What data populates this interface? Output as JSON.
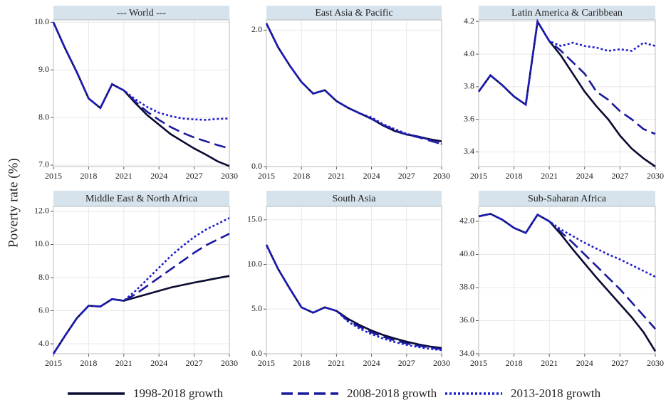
{
  "ylabel": "Poverty rate (%)",
  "chart_data": [
    {
      "type": "line",
      "title": "--- World ---",
      "x": [
        2015,
        2016,
        2017,
        2018,
        2019,
        2020,
        2021,
        2022,
        2023,
        2024,
        2025,
        2026,
        2027,
        2028,
        2029,
        2030
      ],
      "xlim": [
        2015,
        2030
      ],
      "xticks": [
        2015,
        2018,
        2021,
        2024,
        2027,
        2030
      ],
      "ylim": [
        6.97,
        10.05
      ],
      "yticks": [
        {
          "value": 10,
          "label": "10.0"
        },
        {
          "value": 9,
          "label": "9.0"
        },
        {
          "value": 8,
          "label": "8.0"
        },
        {
          "value": 7,
          "label": "7.0"
        }
      ],
      "grid": true,
      "series": [
        {
          "name": "1998-2018 growth",
          "color": "#0b0b33",
          "dash": "solid",
          "values": [
            10.0,
            9.45,
            8.95,
            8.4,
            8.2,
            8.7,
            8.57,
            8.3,
            8.05,
            7.85,
            7.65,
            7.5,
            7.35,
            7.22,
            7.08,
            6.98
          ]
        },
        {
          "name": "2008-2018 growth",
          "color": "#1a1a9c",
          "dash": "dashed",
          "values": [
            10.0,
            9.45,
            8.95,
            8.4,
            8.2,
            8.7,
            8.57,
            8.33,
            8.12,
            7.95,
            7.8,
            7.68,
            7.58,
            7.5,
            7.42,
            7.35
          ]
        },
        {
          "name": "2013-2018 growth",
          "color": "#1f1fcc",
          "dash": "dotted",
          "values": [
            10.0,
            9.45,
            8.95,
            8.4,
            8.2,
            8.7,
            8.57,
            8.38,
            8.22,
            8.1,
            8.03,
            7.98,
            7.96,
            7.95,
            7.97,
            7.98
          ]
        }
      ]
    },
    {
      "type": "line",
      "title": "East Asia & Pacific",
      "x": [
        2015,
        2016,
        2017,
        2018,
        2019,
        2020,
        2021,
        2022,
        2023,
        2024,
        2025,
        2026,
        2027,
        2028,
        2029,
        2030
      ],
      "xlim": [
        2015,
        2030
      ],
      "xticks": [
        2015,
        2018,
        2021,
        2024,
        2027,
        2030
      ],
      "ylim": [
        0,
        2.15
      ],
      "yticks": [
        {
          "value": 2,
          "label": "2.0"
        },
        {
          "value": 0,
          "label": "0.0"
        }
      ],
      "grid": true,
      "series": [
        {
          "name": "1998-2018 growth",
          "color": "#0b0b33",
          "dash": "solid",
          "values": [
            2.1,
            1.75,
            1.48,
            1.24,
            1.07,
            1.12,
            0.96,
            0.86,
            0.78,
            0.7,
            0.6,
            0.52,
            0.47,
            0.44,
            0.4,
            0.37
          ]
        },
        {
          "name": "2008-2018 growth",
          "color": "#1a1a9c",
          "dash": "dashed",
          "values": [
            2.1,
            1.75,
            1.48,
            1.24,
            1.07,
            1.12,
            0.96,
            0.86,
            0.78,
            0.7,
            0.61,
            0.53,
            0.47,
            0.43,
            0.38,
            0.33
          ]
        },
        {
          "name": "2013-2018 growth",
          "color": "#1f1fcc",
          "dash": "dotted",
          "values": [
            2.1,
            1.75,
            1.48,
            1.24,
            1.07,
            1.12,
            0.96,
            0.86,
            0.78,
            0.72,
            0.62,
            0.55,
            0.48,
            0.44,
            0.39,
            0.33
          ]
        }
      ]
    },
    {
      "type": "line",
      "title": "Latin America & Caribbean",
      "x": [
        2015,
        2016,
        2017,
        2018,
        2019,
        2020,
        2021,
        2022,
        2023,
        2024,
        2025,
        2026,
        2027,
        2028,
        2029,
        2030
      ],
      "xlim": [
        2015,
        2030
      ],
      "xticks": [
        2015,
        2018,
        2021,
        2024,
        2027,
        2030
      ],
      "ylim": [
        3.31,
        4.21
      ],
      "yticks": [
        4.2,
        {
          "value": 4,
          "label": "4.0"
        },
        3.8,
        3.6,
        3.4
      ],
      "grid": true,
      "series": [
        {
          "name": "1998-2018 growth",
          "color": "#0b0b33",
          "dash": "solid",
          "values": [
            3.77,
            3.87,
            3.81,
            3.74,
            3.69,
            4.2,
            4.08,
            3.99,
            3.88,
            3.77,
            3.68,
            3.6,
            3.5,
            3.42,
            3.36,
            3.31
          ]
        },
        {
          "name": "2008-2018 growth",
          "color": "#1a1a9c",
          "dash": "dashed",
          "values": [
            3.77,
            3.87,
            3.81,
            3.74,
            3.69,
            4.2,
            4.08,
            4.02,
            3.95,
            3.88,
            3.77,
            3.72,
            3.65,
            3.6,
            3.54,
            3.51
          ]
        },
        {
          "name": "2013-2018 growth",
          "color": "#1f1fcc",
          "dash": "dotted",
          "values": [
            3.77,
            3.87,
            3.81,
            3.74,
            3.69,
            4.2,
            4.08,
            4.05,
            4.07,
            4.05,
            4.04,
            4.02,
            4.03,
            4.02,
            4.07,
            4.05
          ]
        }
      ]
    },
    {
      "type": "line",
      "title": "Middle East & North Africa",
      "x": [
        2015,
        2016,
        2017,
        2018,
        2019,
        2020,
        2021,
        2022,
        2023,
        2024,
        2025,
        2026,
        2027,
        2028,
        2029,
        2030
      ],
      "xlim": [
        2015,
        2030
      ],
      "xticks": [
        2015,
        2018,
        2021,
        2024,
        2027,
        2030
      ],
      "ylim": [
        3.4,
        12.3
      ],
      "yticks": [
        {
          "value": 12,
          "label": "12.0"
        },
        {
          "value": 10,
          "label": "10.0"
        },
        {
          "value": 8,
          "label": "8.0"
        },
        {
          "value": 6,
          "label": "6.0"
        },
        {
          "value": 4,
          "label": "4.0"
        }
      ],
      "grid": true,
      "series": [
        {
          "name": "1998-2018 growth",
          "color": "#0b0b33",
          "dash": "solid",
          "values": [
            3.4,
            4.5,
            5.55,
            6.3,
            6.25,
            6.7,
            6.6,
            6.8,
            7.0,
            7.2,
            7.4,
            7.55,
            7.7,
            7.83,
            7.97,
            8.1
          ]
        },
        {
          "name": "2008-2018 growth",
          "color": "#1a1a9c",
          "dash": "dashed",
          "values": [
            3.4,
            4.5,
            5.55,
            6.3,
            6.25,
            6.7,
            6.6,
            7.0,
            7.5,
            8.0,
            8.5,
            9.0,
            9.5,
            9.95,
            10.3,
            10.65
          ]
        },
        {
          "name": "2013-2018 growth",
          "color": "#1f1fcc",
          "dash": "dotted",
          "values": [
            3.4,
            4.5,
            5.55,
            6.3,
            6.25,
            6.7,
            6.6,
            7.2,
            7.9,
            8.6,
            9.3,
            9.9,
            10.45,
            10.9,
            11.25,
            11.6
          ]
        }
      ]
    },
    {
      "type": "line",
      "title": "South Asia",
      "x": [
        2015,
        2016,
        2017,
        2018,
        2019,
        2020,
        2021,
        2022,
        2023,
        2024,
        2025,
        2026,
        2027,
        2028,
        2029,
        2030
      ],
      "xlim": [
        2015,
        2030
      ],
      "xticks": [
        2015,
        2018,
        2021,
        2024,
        2027,
        2030
      ],
      "ylim": [
        0,
        16.5
      ],
      "yticks": [
        {
          "value": 15,
          "label": "15.0"
        },
        {
          "value": 10,
          "label": "10.0"
        },
        {
          "value": 5,
          "label": "5.0"
        },
        {
          "value": 0,
          "label": "0.0"
        }
      ],
      "grid": true,
      "series": [
        {
          "name": "1998-2018 growth",
          "color": "#0b0b33",
          "dash": "solid",
          "values": [
            12.2,
            9.5,
            7.3,
            5.2,
            4.6,
            5.2,
            4.8,
            3.9,
            3.2,
            2.6,
            2.1,
            1.7,
            1.35,
            1.05,
            0.8,
            0.65
          ]
        },
        {
          "name": "2008-2018 growth",
          "color": "#1a1a9c",
          "dash": "dashed",
          "values": [
            12.2,
            9.5,
            7.3,
            5.2,
            4.6,
            5.2,
            4.8,
            3.7,
            3.0,
            2.4,
            1.9,
            1.5,
            1.15,
            0.9,
            0.7,
            0.5
          ]
        },
        {
          "name": "2013-2018 growth",
          "color": "#1f1fcc",
          "dash": "dotted",
          "values": [
            12.2,
            9.5,
            7.3,
            5.2,
            4.6,
            5.2,
            4.8,
            3.6,
            2.8,
            2.2,
            1.7,
            1.3,
            1.0,
            0.75,
            0.55,
            0.4
          ]
        }
      ]
    },
    {
      "type": "line",
      "title": "Sub-Saharan Africa",
      "x": [
        2015,
        2016,
        2017,
        2018,
        2019,
        2020,
        2021,
        2022,
        2023,
        2024,
        2025,
        2026,
        2027,
        2028,
        2029,
        2030
      ],
      "xlim": [
        2015,
        2030
      ],
      "xticks": [
        2015,
        2018,
        2021,
        2024,
        2027,
        2030
      ],
      "ylim": [
        34.0,
        42.9
      ],
      "yticks": [
        {
          "value": 42,
          "label": "42.0"
        },
        {
          "value": 40,
          "label": "40.0"
        },
        {
          "value": 38,
          "label": "38.0"
        },
        {
          "value": 36,
          "label": "36.0"
        },
        {
          "value": 34,
          "label": "34.0"
        }
      ],
      "grid": true,
      "series": [
        {
          "name": "1998-2018 growth",
          "color": "#0b0b33",
          "dash": "solid",
          "values": [
            42.3,
            42.45,
            42.1,
            41.6,
            41.3,
            42.4,
            42.0,
            41.2,
            40.3,
            39.45,
            38.6,
            37.8,
            37.0,
            36.2,
            35.3,
            34.15
          ]
        },
        {
          "name": "2008-2018 growth",
          "color": "#1a1a9c",
          "dash": "dashed",
          "values": [
            42.3,
            42.45,
            42.1,
            41.6,
            41.3,
            42.4,
            42.0,
            41.35,
            40.7,
            40.0,
            39.3,
            38.6,
            37.9,
            37.1,
            36.3,
            35.5
          ]
        },
        {
          "name": "2013-2018 growth",
          "color": "#1f1fcc",
          "dash": "dotted",
          "values": [
            42.3,
            42.45,
            42.1,
            41.6,
            41.3,
            42.4,
            42.0,
            41.5,
            41.1,
            40.7,
            40.35,
            40.0,
            39.7,
            39.35,
            39.0,
            38.65
          ]
        }
      ]
    }
  ]
}
